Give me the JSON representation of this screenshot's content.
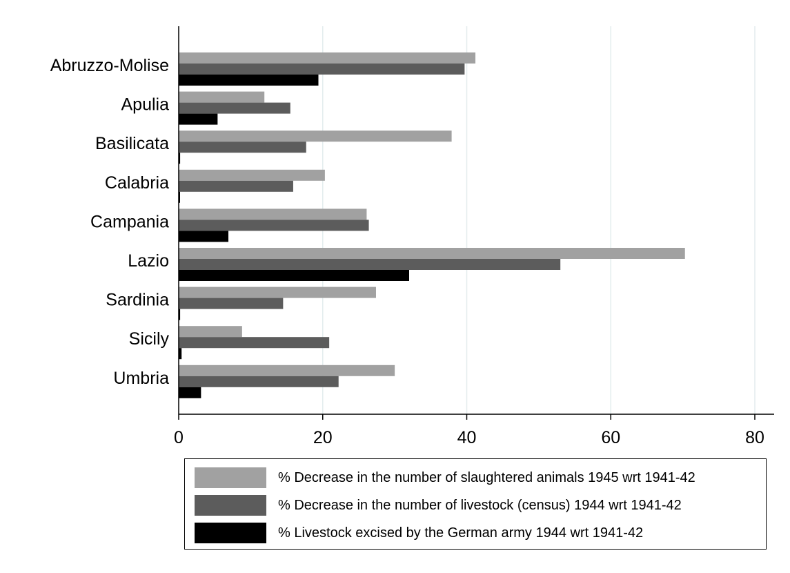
{
  "chart_data": {
    "type": "bar",
    "orientation": "horizontal",
    "categories": [
      "Abruzzo-Molise",
      "Apulia",
      "Basilicata",
      "Calabria",
      "Campania",
      "Lazio",
      "Sardinia",
      "Sicily",
      "Umbria"
    ],
    "series": [
      {
        "name": "% Decrease in the number of slaughtered animals 1945 wrt 1941-42",
        "color": "#a1a1a1",
        "values": [
          41.2,
          11.9,
          37.9,
          20.3,
          26.1,
          70.3,
          27.4,
          8.8,
          30.0
        ]
      },
      {
        "name": "% Decrease in the number of livestock (census) 1944 wrt 1941-42",
        "color": "#5c5c5c",
        "values": [
          39.7,
          15.5,
          17.7,
          15.9,
          26.4,
          53.0,
          14.5,
          20.9,
          22.2
        ]
      },
      {
        "name": "% Livestock excised by the German army 1944 wrt 1941-42",
        "color": "#000000",
        "values": [
          19.4,
          5.4,
          0.2,
          0.1,
          6.9,
          32.0,
          0.2,
          0.4,
          3.1
        ]
      }
    ],
    "xticks": [
      "0",
      "20",
      "40",
      "60",
      "80"
    ],
    "xlim": [
      0,
      83
    ],
    "grid": true,
    "gridlines": "vertical",
    "legend_position": "bottom"
  }
}
